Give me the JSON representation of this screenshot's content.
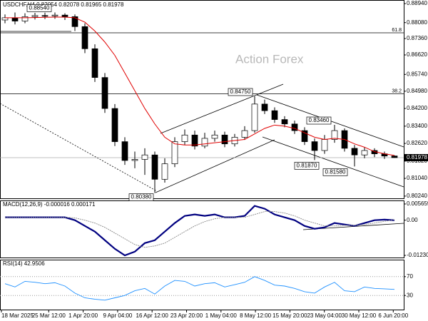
{
  "chart_data": [
    {
      "type": "candlestick",
      "title": "USDCHF,H4 0.82054 0.82078 0.81965 0.81978",
      "watermark": "Action Forex",
      "open": [
        0.882,
        0.883,
        0.8815,
        0.8835,
        0.884,
        0.8838,
        0.8842,
        0.8835,
        0.879,
        0.869,
        0.856,
        0.842,
        0.827,
        0.8185,
        0.819,
        0.821,
        0.81,
        0.817,
        0.827,
        0.83,
        0.825,
        0.8285,
        0.83,
        0.826,
        0.829,
        0.832,
        0.844,
        0.841,
        0.837,
        0.835,
        0.832,
        0.827,
        0.823,
        0.828,
        0.832,
        0.824,
        0.821,
        0.823,
        0.8215,
        0.82054
      ],
      "high": [
        0.8845,
        0.8854,
        0.885,
        0.8852,
        0.8853,
        0.8854,
        0.885,
        0.8845,
        0.8805,
        0.871,
        0.858,
        0.844,
        0.829,
        0.8225,
        0.824,
        0.8225,
        0.8195,
        0.829,
        0.8325,
        0.832,
        0.831,
        0.832,
        0.8315,
        0.8305,
        0.834,
        0.8475,
        0.846,
        0.8425,
        0.8385,
        0.8365,
        0.8335,
        0.8285,
        0.83,
        0.8346,
        0.833,
        0.8255,
        0.8245,
        0.824,
        0.8225,
        0.82078
      ],
      "low": [
        0.8805,
        0.88,
        0.8805,
        0.8822,
        0.8824,
        0.8825,
        0.882,
        0.877,
        0.867,
        0.854,
        0.84,
        0.825,
        0.8165,
        0.815,
        0.812,
        0.8038,
        0.8085,
        0.8155,
        0.8255,
        0.8235,
        0.824,
        0.827,
        0.8245,
        0.8248,
        0.8278,
        0.831,
        0.8395,
        0.8355,
        0.8335,
        0.8305,
        0.8255,
        0.8187,
        0.8215,
        0.8265,
        0.8225,
        0.8158,
        0.8195,
        0.82,
        0.8192,
        0.81965
      ],
      "close": [
        0.883,
        0.8815,
        0.8835,
        0.884,
        0.8838,
        0.8842,
        0.8835,
        0.879,
        0.869,
        0.856,
        0.842,
        0.827,
        0.8185,
        0.819,
        0.821,
        0.81,
        0.817,
        0.827,
        0.83,
        0.825,
        0.8285,
        0.83,
        0.826,
        0.829,
        0.832,
        0.844,
        0.841,
        0.837,
        0.835,
        0.832,
        0.827,
        0.823,
        0.828,
        0.832,
        0.824,
        0.821,
        0.823,
        0.8215,
        0.8205,
        0.81978
      ],
      "ma": {
        "color": "#e00000",
        "values": [
          0.883,
          0.883,
          0.883,
          0.8831,
          0.8832,
          0.8833,
          0.8833,
          0.883,
          0.881,
          0.877,
          0.872,
          0.866,
          0.858,
          0.85,
          0.842,
          0.835,
          0.829,
          0.826,
          0.8255,
          0.8255,
          0.826,
          0.8265,
          0.827,
          0.8275,
          0.828,
          0.8305,
          0.833,
          0.8345,
          0.834,
          0.833,
          0.831,
          0.829,
          0.828,
          0.8285,
          0.828,
          0.826,
          0.8245,
          0.8225,
          0.8215,
          0.8208
        ]
      },
      "up_color": "#ffffff",
      "down_color": "#000000",
      "ylim": [
        0.8014,
        0.8907
      ],
      "yticks": [
        {
          "value": 0.8894,
          "label": "0.88940"
        },
        {
          "value": 0.8808,
          "label": "0.88080"
        },
        {
          "value": 0.8736,
          "label": "0.87360"
        },
        {
          "value": 0.8662,
          "label": "0.86620"
        },
        {
          "value": 0.8574,
          "label": "0.85740"
        },
        {
          "value": 0.8498,
          "label": "0.84980"
        },
        {
          "value": 0.842,
          "label": "0.84200"
        },
        {
          "value": 0.834,
          "label": "0.83400"
        },
        {
          "value": 0.8262,
          "label": "0.82620"
        },
        {
          "value": 0.8182,
          "label": "0.81820"
        },
        {
          "value": 0.8104,
          "label": "0.81040"
        },
        {
          "value": 0.8024,
          "label": "0.80240"
        }
      ],
      "last": 0.81978,
      "levels": [
        {
          "label": "61.8",
          "value": 0.8762
        },
        {
          "label": "38.2",
          "value": 0.8486
        }
      ],
      "annotations": [
        {
          "value": 0.8854,
          "label": "0.88540"
        },
        {
          "value": 0.8475,
          "label": "0.84750"
        },
        {
          "value": 0.8346,
          "label": "0.83460"
        },
        {
          "value": 0.8187,
          "label": "0.81870"
        },
        {
          "value": 0.8158,
          "label": "0.81580"
        },
        {
          "value": 0.8038,
          "label": "0.80380"
        }
      ],
      "x_labels": [
        "18 Mar 2025",
        "25 Mar 12:00",
        "1 Apr 20:00",
        "9 Apr 04:00",
        "16 Apr 12:00",
        "23 Apr 20:00",
        "1 May 04:00",
        "8 May 12:00",
        "15 May 20:00",
        "23 May 04:00",
        "30 May 12:00",
        "6 Jun 20:00"
      ]
    },
    {
      "type": "line",
      "title": "MACD(12,26,9) -0.000016 0.000171",
      "series": [
        {
          "color": "#000080",
          "values": [
            0.001,
            0.001,
            0.001,
            0.001,
            0.001,
            0.001,
            0.001,
            0.0,
            -0.002,
            -0.004,
            -0.007,
            -0.01,
            -0.0123,
            -0.011,
            -0.008,
            -0.007,
            -0.004,
            -0.001,
            0.0015,
            0.002,
            0.0015,
            0.002,
            0.001,
            0.001,
            0.0015,
            0.005,
            0.004,
            0.002,
            0.001,
            0.0,
            -0.002,
            -0.003,
            -0.0025,
            -0.001,
            -0.0015,
            -0.002,
            -0.001,
            0.0,
            0.0002,
            -1.6e-05
          ]
        },
        {
          "color": "#888888",
          "values": [
            0.001,
            0.001,
            0.001,
            0.001,
            0.001,
            0.001,
            0.001,
            0.0008,
            0.0,
            -0.001,
            -0.0025,
            -0.0045,
            -0.0065,
            -0.0085,
            -0.0095,
            -0.009,
            -0.008,
            -0.006,
            -0.004,
            -0.002,
            -0.0005,
            0.0005,
            0.001,
            0.001,
            0.001,
            0.002,
            0.003,
            0.003,
            0.0025,
            0.0015,
            0.0,
            -0.001,
            -0.002,
            -0.002,
            -0.0018,
            -0.0018,
            -0.0015,
            -0.001,
            -0.0004,
            0.000171
          ]
        }
      ],
      "ylim": [
        -0.01304,
        0.00664
      ],
      "yticks": [
        0.005659,
        {
          "value": 0,
          "label": "0.00"
        },
        -0.012301
      ]
    },
    {
      "type": "line",
      "title": "RSI(14) 42.9506",
      "series": [
        {
          "color": "#1e90ff",
          "values": [
            55,
            48,
            60,
            58,
            55,
            57,
            50,
            35,
            25,
            22,
            20,
            25,
            30,
            40,
            45,
            33,
            50,
            62,
            60,
            50,
            55,
            57,
            48,
            53,
            58,
            70,
            62,
            52,
            50,
            45,
            38,
            35,
            48,
            58,
            40,
            38,
            48,
            45,
            44,
            42.9506
          ]
        }
      ],
      "ylim": [
        0,
        100
      ],
      "yticks": [
        70,
        30
      ]
    }
  ]
}
